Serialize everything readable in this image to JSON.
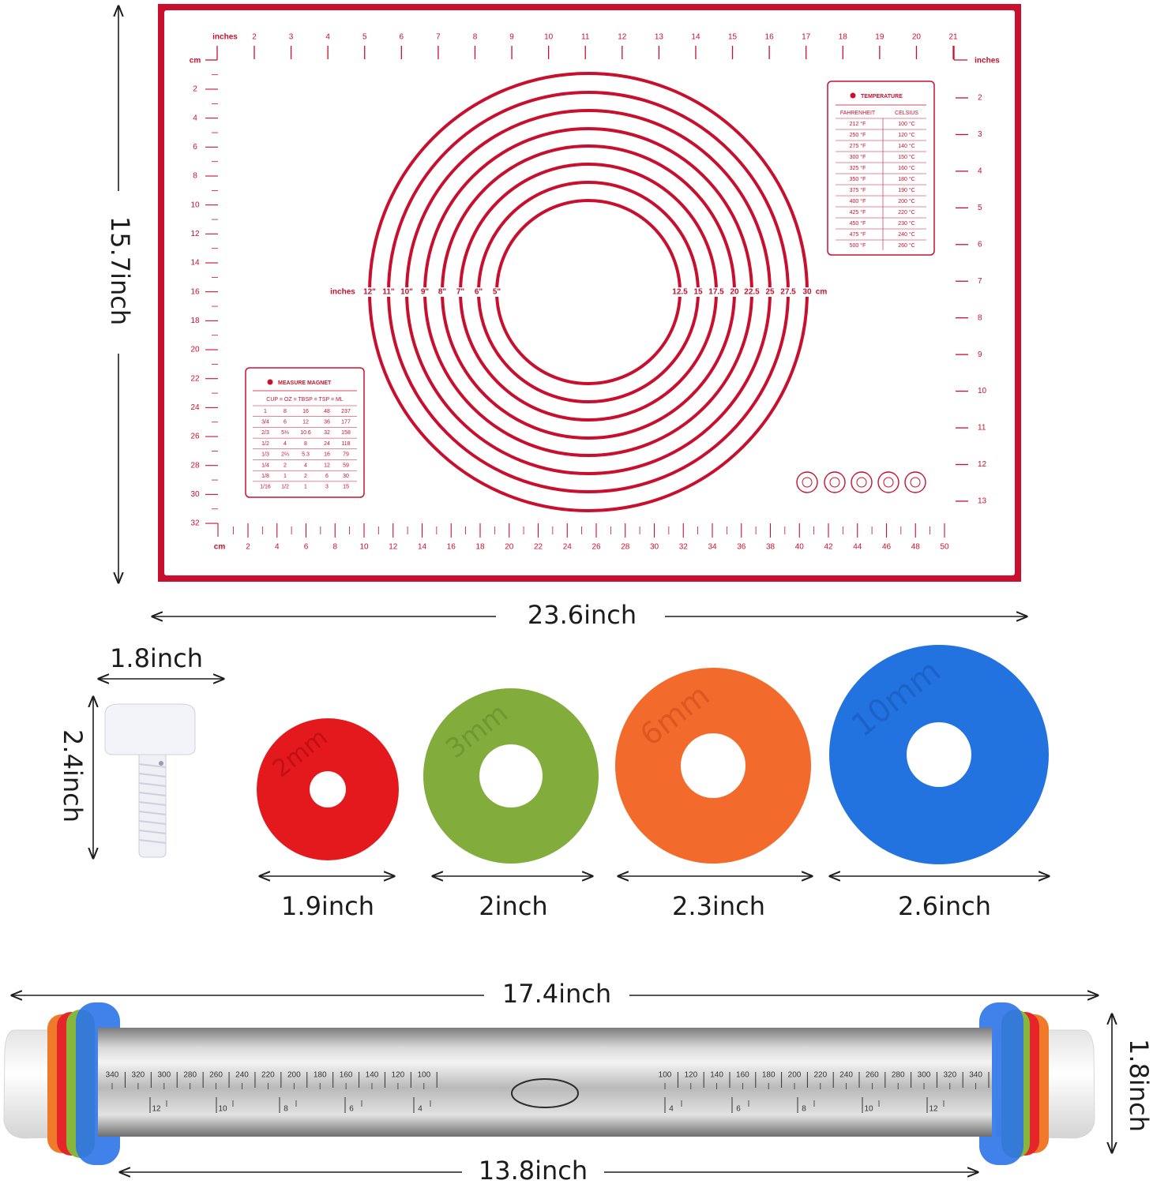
{
  "mat": {
    "width_label": "23.6inch",
    "height_label": "15.7inch",
    "top_ruler": {
      "unit": "inches",
      "labels": [
        "2",
        "3",
        "4",
        "5",
        "6",
        "7",
        "8",
        "9",
        "10",
        "11",
        "12",
        "13",
        "14",
        "15",
        "16",
        "17",
        "18",
        "19",
        "20",
        "21"
      ]
    },
    "right_ruler": {
      "unit": "inches",
      "labels": [
        "2",
        "3",
        "4",
        "5",
        "6",
        "7",
        "8",
        "9",
        "10",
        "11",
        "12",
        "13"
      ]
    },
    "left_ruler": {
      "unit": "cm",
      "labels": [
        "2",
        "4",
        "6",
        "8",
        "10",
        "12",
        "14",
        "16",
        "18",
        "20",
        "22",
        "24",
        "26",
        "28",
        "30",
        "32"
      ]
    },
    "bottom_ruler": {
      "unit": "cm",
      "labels": [
        "2",
        "4",
        "6",
        "8",
        "10",
        "12",
        "14",
        "16",
        "18",
        "20",
        "22",
        "24",
        "26",
        "28",
        "30",
        "32",
        "34",
        "36",
        "38",
        "40",
        "42",
        "44",
        "46",
        "48",
        "50"
      ]
    },
    "rings": {
      "inch_unit": "inches",
      "inch_labels": [
        "12\"",
        "11\"",
        "10\"",
        "9\"",
        "8\"",
        "7\"",
        "6\"",
        "5\""
      ],
      "cm_labels": [
        "30",
        "27.5",
        "25",
        "22.5",
        "20",
        "17.5",
        "15",
        "12.5"
      ],
      "cm_unit": "cm"
    },
    "temperature": {
      "title": "TEMPERATURE",
      "headers": [
        "FAHRENHEIT",
        "CELSIUS"
      ],
      "rows": [
        [
          "212 °F",
          "100 °C"
        ],
        [
          "250 °F",
          "120 °C"
        ],
        [
          "275 °F",
          "140 °C"
        ],
        [
          "300 °F",
          "150 °C"
        ],
        [
          "325 °F",
          "160 °C"
        ],
        [
          "350 °F",
          "180 °C"
        ],
        [
          "375 °F",
          "190 °C"
        ],
        [
          "400 °F",
          "200 °C"
        ],
        [
          "425 °F",
          "220 °C"
        ],
        [
          "450 °F",
          "230 °C"
        ],
        [
          "475 °F",
          "240 °C"
        ],
        [
          "500 °F",
          "260 °C"
        ]
      ]
    },
    "measure": {
      "title": "MEASURE MAGNET",
      "header": "CUP = OZ = TBSP = TSP = ML",
      "rows": [
        [
          "1",
          "8",
          "16",
          "48",
          "237"
        ],
        [
          "3/4",
          "6",
          "12",
          "36",
          "177"
        ],
        [
          "2/3",
          "5⅓",
          "10.6",
          "32",
          "158"
        ],
        [
          "1/2",
          "4",
          "8",
          "24",
          "118"
        ],
        [
          "1/3",
          "2⅔",
          "5.3",
          "16",
          "79"
        ],
        [
          "1/4",
          "2",
          "4",
          "12",
          "59"
        ],
        [
          "1/8",
          "1",
          "2",
          "6",
          "30"
        ],
        [
          "1/16",
          "1/2",
          "1",
          "3",
          "15"
        ]
      ]
    }
  },
  "knob": {
    "width_label": "1.8inch",
    "height_label": "2.4inch"
  },
  "discs": [
    {
      "thickness": "2mm",
      "diameter_label": "1.9inch"
    },
    {
      "thickness": "3mm",
      "diameter_label": "2inch"
    },
    {
      "thickness": "6mm",
      "diameter_label": "2.3inch"
    },
    {
      "thickness": "10mm",
      "diameter_label": "2.6inch"
    }
  ],
  "rolling_pin": {
    "length_label": "17.4inch",
    "barrel_label": "13.8inch",
    "diameter_label": "1.8inch",
    "left_scale": {
      "numbers": [
        "340",
        "320",
        "300",
        "280",
        "260",
        "240",
        "220",
        "200",
        "180",
        "160",
        "140",
        "120",
        "100"
      ],
      "inches": [
        "12",
        "10",
        "8",
        "6",
        "4"
      ]
    },
    "right_scale": {
      "numbers": [
        "100",
        "120",
        "140",
        "160",
        "180",
        "200",
        "220",
        "240",
        "260",
        "280",
        "300",
        "320",
        "340"
      ],
      "inches": [
        "4",
        "6",
        "8",
        "10",
        "12"
      ]
    }
  }
}
